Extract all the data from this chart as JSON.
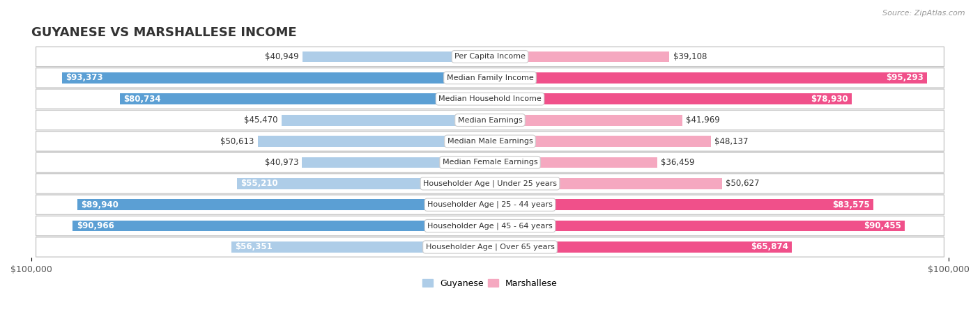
{
  "title": "GUYANESE VS MARSHALLESE INCOME",
  "source": "Source: ZipAtlas.com",
  "categories": [
    "Per Capita Income",
    "Median Family Income",
    "Median Household Income",
    "Median Earnings",
    "Median Male Earnings",
    "Median Female Earnings",
    "Householder Age | Under 25 years",
    "Householder Age | 25 - 44 years",
    "Householder Age | 45 - 64 years",
    "Householder Age | Over 65 years"
  ],
  "guyanese_values": [
    40949,
    93373,
    80734,
    45470,
    50613,
    40973,
    55210,
    89940,
    90966,
    56351
  ],
  "marshallese_values": [
    39108,
    95293,
    78930,
    41969,
    48137,
    36459,
    50627,
    83575,
    90455,
    65874
  ],
  "guyanese_labels": [
    "$40,949",
    "$93,373",
    "$80,734",
    "$45,470",
    "$50,613",
    "$40,973",
    "$55,210",
    "$89,940",
    "$90,966",
    "$56,351"
  ],
  "marshallese_labels": [
    "$39,108",
    "$95,293",
    "$78,930",
    "$41,969",
    "$48,137",
    "$36,459",
    "$50,627",
    "$83,575",
    "$90,455",
    "$65,874"
  ],
  "guyanese_color_light": "#aecde8",
  "guyanese_color_dark": "#5b9fd4",
  "marshallese_color_light": "#f5a8c0",
  "marshallese_color_dark": "#f0508a",
  "max_value": 100000,
  "bar_height": 0.52,
  "background_color": "#ffffff",
  "row_bg_light": "#ffffff",
  "row_bg_dark": "#f0f0f0",
  "title_fontsize": 13,
  "label_fontsize": 8.5,
  "category_fontsize": 8.0,
  "threshold": 60000
}
